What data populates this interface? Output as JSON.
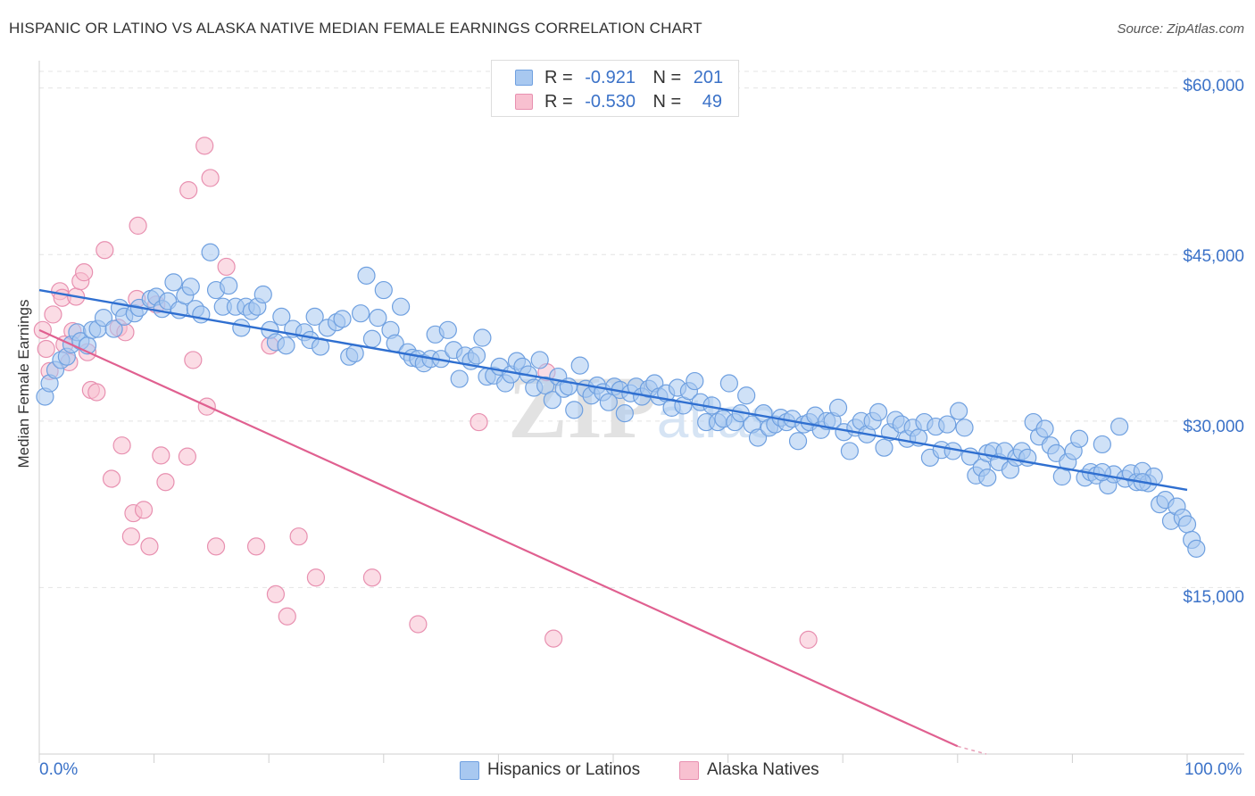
{
  "title": "HISPANIC OR LATINO VS ALASKA NATIVE MEDIAN FEMALE EARNINGS CORRELATION CHART",
  "source": "Source: ZipAtlas.com",
  "watermark": "ZIPatlas",
  "legend": {
    "rows": [
      {
        "r_label": "R =",
        "r_value": "-0.921",
        "n_label": "N =",
        "n_value": "201",
        "color": "#a8c8f0",
        "stroke": "#6fa0e0"
      },
      {
        "r_label": "R =",
        "r_value": "-0.530",
        "n_label": "N =",
        "n_value": "49",
        "color": "#f8c0d0",
        "stroke": "#e890b0"
      }
    ]
  },
  "bottom_legend": [
    {
      "label": "Hispanics or Latinos",
      "color": "#a8c8f0",
      "stroke": "#6fa0e0"
    },
    {
      "label": "Alaska Natives",
      "color": "#f8c0d0",
      "stroke": "#e890b0"
    }
  ],
  "chart_data": {
    "type": "scatter",
    "ylabel": "Median Female Earnings",
    "xlabel": "",
    "xlim": [
      0,
      100
    ],
    "ylim": [
      0,
      61500
    ],
    "x_tick_labels": [
      "0.0%",
      "100.0%"
    ],
    "y_ticks": [
      15000,
      30000,
      45000,
      60000
    ],
    "y_tick_labels": [
      "$15,000",
      "$30,000",
      "$45,000",
      "$60,000"
    ],
    "grid": true,
    "series": [
      {
        "name": "Hispanics or Latinos",
        "color": "#6fa0e0",
        "fill": "#a8c8f0",
        "trend": {
          "x": [
            0,
            100
          ],
          "y": [
            41800,
            23800
          ]
        },
        "points": [
          [
            0.5,
            32200
          ],
          [
            0.9,
            33400
          ],
          [
            1.4,
            34600
          ],
          [
            1.9,
            35500
          ],
          [
            2.4,
            35800
          ],
          [
            2.8,
            36900
          ],
          [
            3.3,
            38000
          ],
          [
            3.6,
            37200
          ],
          [
            4.2,
            36800
          ],
          [
            4.6,
            38200
          ],
          [
            5.1,
            38300
          ],
          [
            5.6,
            39300
          ],
          [
            6.5,
            38300
          ],
          [
            7.0,
            40200
          ],
          [
            7.4,
            39400
          ],
          [
            8.3,
            39700
          ],
          [
            8.7,
            40200
          ],
          [
            9.7,
            41000
          ],
          [
            10.2,
            41200
          ],
          [
            10.7,
            40100
          ],
          [
            11.2,
            40800
          ],
          [
            11.7,
            42500
          ],
          [
            12.2,
            40000
          ],
          [
            12.7,
            41300
          ],
          [
            13.2,
            42100
          ],
          [
            13.6,
            40100
          ],
          [
            14.1,
            39600
          ],
          [
            14.9,
            45200
          ],
          [
            15.4,
            41800
          ],
          [
            16.0,
            40300
          ],
          [
            16.5,
            42200
          ],
          [
            17.1,
            40300
          ],
          [
            17.6,
            38400
          ],
          [
            18.0,
            40300
          ],
          [
            18.5,
            39900
          ],
          [
            19.0,
            40300
          ],
          [
            19.5,
            41400
          ],
          [
            20.1,
            38200
          ],
          [
            20.6,
            37100
          ],
          [
            21.1,
            39400
          ],
          [
            21.5,
            36800
          ],
          [
            22.1,
            38300
          ],
          [
            23.1,
            38000
          ],
          [
            23.6,
            37300
          ],
          [
            24.0,
            39400
          ],
          [
            24.5,
            36700
          ],
          [
            25.1,
            38400
          ],
          [
            25.9,
            38900
          ],
          [
            26.4,
            39200
          ],
          [
            27.0,
            35800
          ],
          [
            27.5,
            36100
          ],
          [
            28.0,
            39700
          ],
          [
            28.5,
            43100
          ],
          [
            29.0,
            37400
          ],
          [
            29.5,
            39300
          ],
          [
            30.0,
            41800
          ],
          [
            30.6,
            38200
          ],
          [
            31.0,
            37000
          ],
          [
            31.5,
            40300
          ],
          [
            32.1,
            36200
          ],
          [
            32.5,
            35700
          ],
          [
            33.0,
            35600
          ],
          [
            33.5,
            35200
          ],
          [
            34.1,
            35600
          ],
          [
            34.5,
            37800
          ],
          [
            35.0,
            35600
          ],
          [
            35.6,
            38200
          ],
          [
            36.1,
            36400
          ],
          [
            36.6,
            33800
          ],
          [
            37.1,
            35900
          ],
          [
            37.6,
            35400
          ],
          [
            38.1,
            35900
          ],
          [
            38.6,
            37500
          ],
          [
            39.0,
            34000
          ],
          [
            39.6,
            34100
          ],
          [
            40.1,
            34900
          ],
          [
            40.6,
            33400
          ],
          [
            41.1,
            34200
          ],
          [
            41.6,
            35400
          ],
          [
            42.1,
            34900
          ],
          [
            42.6,
            34200
          ],
          [
            43.1,
            33000
          ],
          [
            43.6,
            35500
          ],
          [
            44.1,
            33200
          ],
          [
            44.7,
            31900
          ],
          [
            45.2,
            34000
          ],
          [
            45.7,
            32900
          ],
          [
            46.1,
            33100
          ],
          [
            46.6,
            31000
          ],
          [
            47.1,
            35000
          ],
          [
            47.6,
            32900
          ],
          [
            48.1,
            32300
          ],
          [
            48.6,
            33200
          ],
          [
            49.1,
            32600
          ],
          [
            49.6,
            31700
          ],
          [
            50.1,
            33100
          ],
          [
            50.6,
            32800
          ],
          [
            51.0,
            30700
          ],
          [
            51.5,
            32500
          ],
          [
            52.0,
            33100
          ],
          [
            52.5,
            32200
          ],
          [
            53.1,
            32900
          ],
          [
            53.6,
            33400
          ],
          [
            54.0,
            32200
          ],
          [
            54.6,
            32500
          ],
          [
            55.1,
            31200
          ],
          [
            55.6,
            33000
          ],
          [
            56.1,
            31400
          ],
          [
            56.6,
            32700
          ],
          [
            57.1,
            33600
          ],
          [
            57.6,
            31700
          ],
          [
            58.1,
            29900
          ],
          [
            58.6,
            31400
          ],
          [
            59.1,
            29900
          ],
          [
            59.6,
            30200
          ],
          [
            60.1,
            33400
          ],
          [
            60.6,
            29900
          ],
          [
            61.1,
            30700
          ],
          [
            61.6,
            32300
          ],
          [
            62.1,
            29700
          ],
          [
            62.6,
            28500
          ],
          [
            63.1,
            30700
          ],
          [
            63.6,
            29400
          ],
          [
            64.1,
            29700
          ],
          [
            64.6,
            30300
          ],
          [
            65.1,
            29900
          ],
          [
            65.6,
            30200
          ],
          [
            66.1,
            28200
          ],
          [
            66.6,
            29700
          ],
          [
            67.1,
            29900
          ],
          [
            67.6,
            30500
          ],
          [
            68.1,
            29200
          ],
          [
            68.6,
            30000
          ],
          [
            69.1,
            30000
          ],
          [
            69.6,
            31200
          ],
          [
            70.1,
            29000
          ],
          [
            70.6,
            27300
          ],
          [
            71.1,
            29400
          ],
          [
            71.6,
            30000
          ],
          [
            72.1,
            28800
          ],
          [
            72.6,
            30000
          ],
          [
            73.1,
            30800
          ],
          [
            73.6,
            27600
          ],
          [
            74.1,
            29000
          ],
          [
            74.6,
            30100
          ],
          [
            75.1,
            29700
          ],
          [
            75.6,
            28400
          ],
          [
            76.1,
            29400
          ],
          [
            76.6,
            28500
          ],
          [
            77.1,
            29900
          ],
          [
            77.6,
            26700
          ],
          [
            78.1,
            29500
          ],
          [
            78.6,
            27400
          ],
          [
            79.1,
            29700
          ],
          [
            79.6,
            27300
          ],
          [
            80.1,
            30900
          ],
          [
            80.6,
            29400
          ],
          [
            81.1,
            26800
          ],
          [
            81.6,
            25100
          ],
          [
            82.1,
            25800
          ],
          [
            82.6,
            27100
          ],
          [
            83.1,
            27300
          ],
          [
            83.6,
            26300
          ],
          [
            84.1,
            27300
          ],
          [
            84.6,
            25600
          ],
          [
            85.1,
            26700
          ],
          [
            85.6,
            27300
          ],
          [
            86.1,
            26700
          ],
          [
            86.6,
            29900
          ],
          [
            87.1,
            28600
          ],
          [
            87.6,
            29300
          ],
          [
            88.1,
            27800
          ],
          [
            88.6,
            27100
          ],
          [
            89.1,
            25000
          ],
          [
            89.6,
            26300
          ],
          [
            90.1,
            27300
          ],
          [
            90.6,
            28400
          ],
          [
            91.1,
            24900
          ],
          [
            91.6,
            25400
          ],
          [
            92.1,
            25100
          ],
          [
            92.6,
            27900
          ],
          [
            93.1,
            24200
          ],
          [
            93.6,
            25200
          ],
          [
            94.1,
            29500
          ],
          [
            94.6,
            24800
          ],
          [
            95.1,
            25300
          ],
          [
            95.6,
            24500
          ],
          [
            96.1,
            25500
          ],
          [
            96.6,
            24400
          ],
          [
            97.1,
            25000
          ],
          [
            97.6,
            22500
          ],
          [
            98.1,
            22900
          ],
          [
            98.6,
            21000
          ],
          [
            99.1,
            22300
          ],
          [
            99.6,
            21300
          ],
          [
            100.0,
            20700
          ],
          [
            100.4,
            19300
          ],
          [
            100.8,
            18500
          ],
          [
            96.1,
            24500
          ],
          [
            82.6,
            24900
          ],
          [
            92.6,
            25400
          ]
        ]
      },
      {
        "name": "Alaska Natives",
        "color": "#e890b0",
        "fill": "#f8c0d0",
        "trend": {
          "x": [
            0,
            80
          ],
          "y": [
            38200,
            700
          ]
        },
        "dashed_extension": {
          "x": [
            80,
            82.5
          ],
          "y": [
            700,
            0
          ]
        },
        "points": [
          [
            0.3,
            38200
          ],
          [
            0.6,
            36500
          ],
          [
            0.9,
            34500
          ],
          [
            1.2,
            39600
          ],
          [
            1.8,
            41700
          ],
          [
            2.0,
            41100
          ],
          [
            2.2,
            36900
          ],
          [
            2.6,
            35300
          ],
          [
            2.9,
            38100
          ],
          [
            3.2,
            41200
          ],
          [
            3.6,
            42600
          ],
          [
            3.9,
            43400
          ],
          [
            4.2,
            36200
          ],
          [
            4.5,
            32800
          ],
          [
            5.0,
            32600
          ],
          [
            5.7,
            45400
          ],
          [
            6.3,
            24800
          ],
          [
            6.9,
            38400
          ],
          [
            7.2,
            27800
          ],
          [
            7.5,
            38000
          ],
          [
            8.0,
            19600
          ],
          [
            8.2,
            21700
          ],
          [
            8.6,
            47600
          ],
          [
            9.1,
            22000
          ],
          [
            9.6,
            18700
          ],
          [
            10.2,
            40500
          ],
          [
            10.6,
            26900
          ],
          [
            11.0,
            24500
          ],
          [
            12.9,
            26800
          ],
          [
            13.0,
            50800
          ],
          [
            13.4,
            35500
          ],
          [
            14.4,
            54800
          ],
          [
            14.6,
            31300
          ],
          [
            14.9,
            51900
          ],
          [
            15.4,
            18700
          ],
          [
            16.3,
            43900
          ],
          [
            18.9,
            18700
          ],
          [
            20.1,
            36800
          ],
          [
            20.6,
            14400
          ],
          [
            21.6,
            12400
          ],
          [
            22.6,
            19600
          ],
          [
            24.1,
            15900
          ],
          [
            29.0,
            15900
          ],
          [
            33.0,
            11700
          ],
          [
            38.3,
            29900
          ],
          [
            44.2,
            34400
          ],
          [
            44.8,
            10400
          ],
          [
            67.0,
            10300
          ],
          [
            8.5,
            41000
          ]
        ]
      }
    ]
  }
}
